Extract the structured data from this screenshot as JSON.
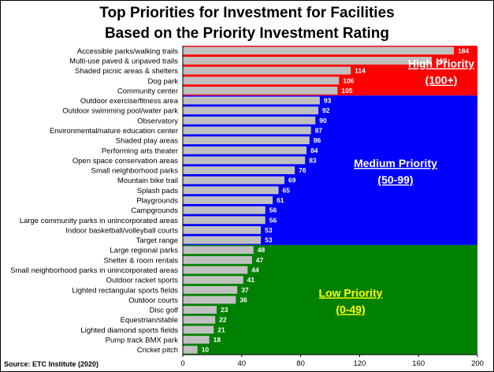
{
  "title_line1": "Top Priorities for Investment for Facilities",
  "title_line2": "Based on the Priority Investment Rating",
  "source": "Source: ETC Institute (2020)",
  "colors": {
    "bar": "#c0c0c0",
    "high": "#ff0000",
    "medium": "#0000ff",
    "low": "#008000",
    "high_text": "#ffffff",
    "medium_text": "#ffffff",
    "low_text": "#ffff00"
  },
  "zones": [
    {
      "key": "high",
      "label1": "High Priority",
      "label2": "(100+)",
      "min": 100,
      "text_color": "#ffffff"
    },
    {
      "key": "medium",
      "label1": "Medium Priority",
      "label2": "(50-99)",
      "min": 50,
      "max": 99,
      "text_color": "#ffffff"
    },
    {
      "key": "low",
      "label1": "Low Priority",
      "label2": "(0-49)",
      "min": 0,
      "max": 49,
      "text_color": "#ffff00"
    }
  ],
  "chart_data": {
    "type": "bar",
    "orientation": "horizontal",
    "title": "Top Priorities for Investment for Facilities Based on the Priority Investment Rating",
    "xlim": [
      0,
      200
    ],
    "xticks": [
      0,
      40,
      80,
      120,
      160,
      200
    ],
    "grid": false,
    "categories": [
      "Accessible parks/walking trails",
      "Multi-use paved & unpaved trails",
      "Shaded picnic areas & shelters",
      "Dog park",
      "Community center",
      "Outdoor exercise/fitness area",
      "Outdoor swimming pool/water park",
      "Observatory",
      "Environmental/nature education center",
      "Shaded play areas",
      "Performing arts theater",
      "Open space conservation areas",
      "Small neighborhood parks",
      "Mountain bike trail",
      "Splash pads",
      "Playgrounds",
      "Campgrounds",
      "Large community parks in unincorporated areas",
      "Indoor basketball/volleyball courts",
      "Target range",
      "Large regional parks",
      "Shelter & room rentals",
      "Small neighborhood parks in unincorporated areas",
      "Outdoor racket sports",
      "Lighted rectangular sports fields",
      "Outdoor courts",
      "Disc golf",
      "Equestrian/stable",
      "Lighted diamond sports fields",
      "Pump track BMX park",
      "Cricket pitch"
    ],
    "values": [
      184,
      169,
      114,
      106,
      105,
      93,
      92,
      90,
      87,
      86,
      84,
      83,
      76,
      69,
      65,
      61,
      56,
      56,
      53,
      53,
      48,
      47,
      44,
      41,
      37,
      36,
      23,
      22,
      21,
      18,
      10
    ]
  }
}
